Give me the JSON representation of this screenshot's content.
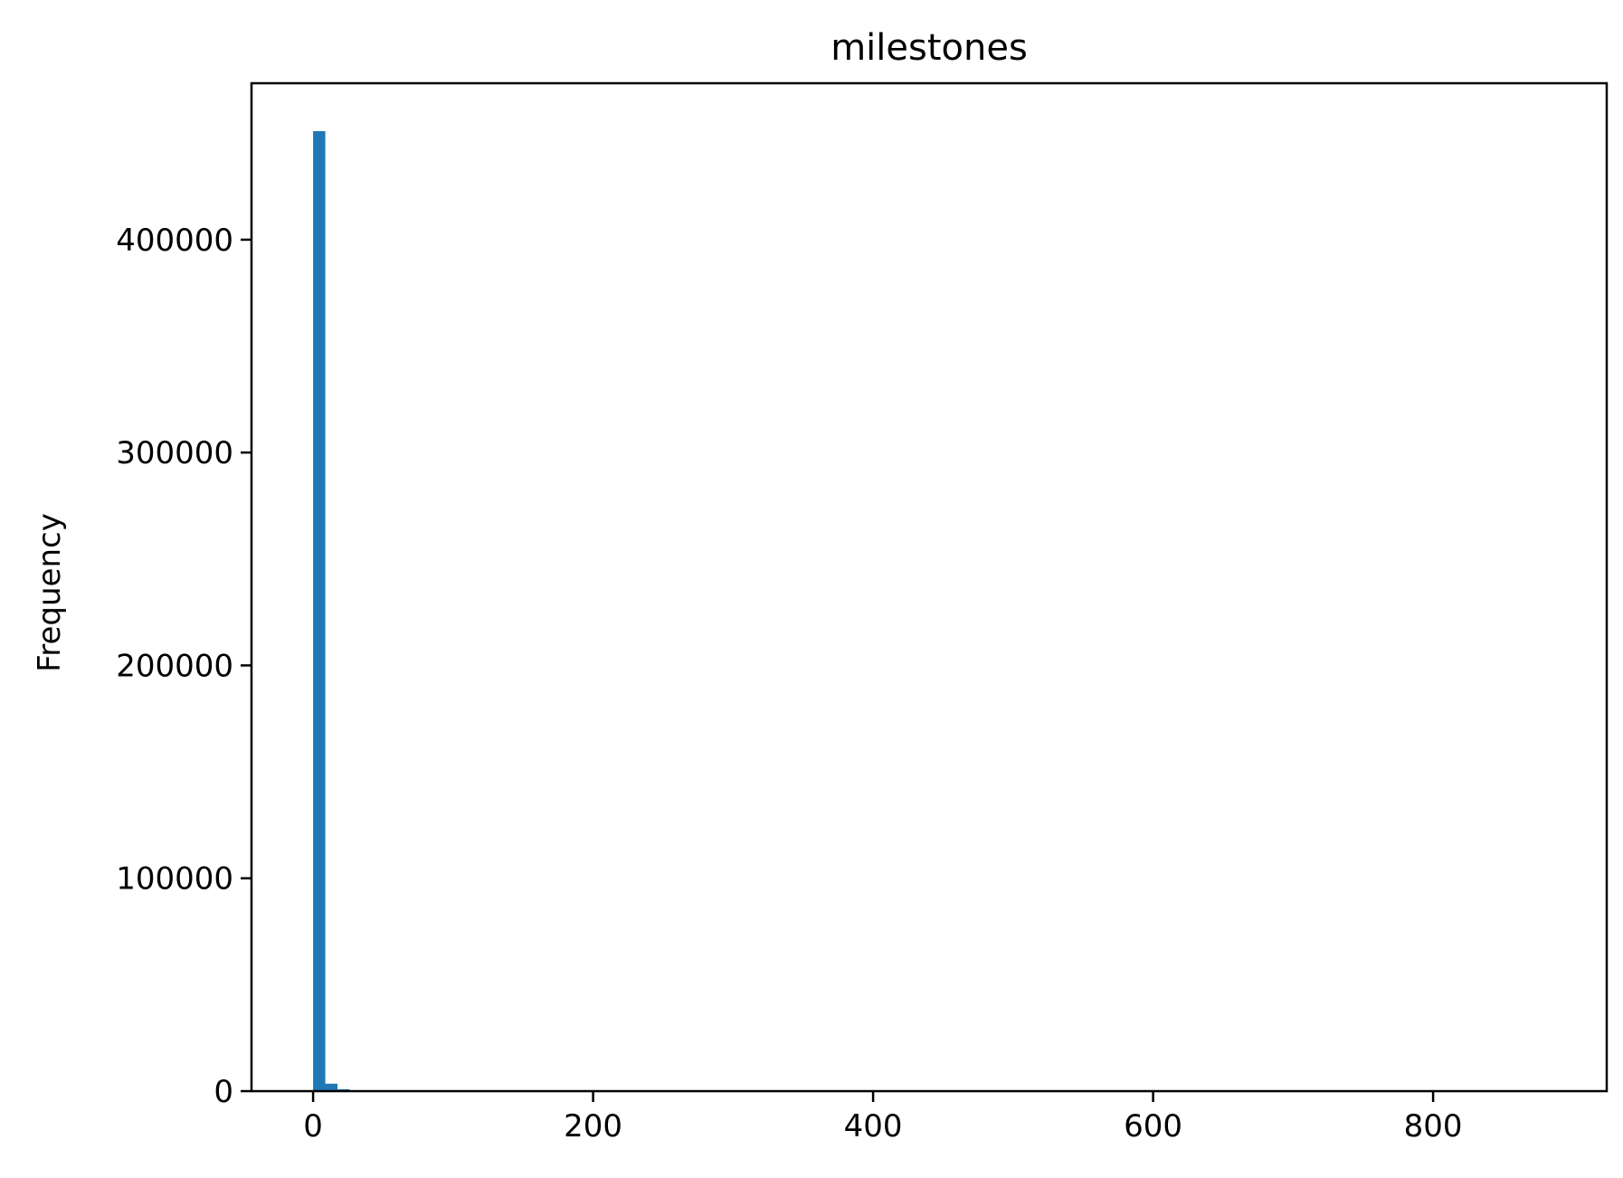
{
  "chart_data": {
    "type": "bar",
    "title": "milestones",
    "xlabel": "",
    "ylabel": "Frequency",
    "xlim": [
      -44,
      924
    ],
    "ylim": [
      0,
      473500
    ],
    "x_ticks": [
      0,
      200,
      400,
      600,
      800
    ],
    "y_ticks": [
      0,
      100000,
      200000,
      300000,
      400000
    ],
    "bin_width": 8.7,
    "bins": [
      {
        "start": 0.0,
        "end": 8.7,
        "count": 451000
      },
      {
        "start": 8.7,
        "end": 17.4,
        "count": 3500
      },
      {
        "start": 17.4,
        "end": 26.1,
        "count": 900
      },
      {
        "start": 26.1,
        "end": 34.8,
        "count": 200
      },
      {
        "start": 34.8,
        "end": 43.5,
        "count": 80
      },
      {
        "start": 43.5,
        "end": 52.2,
        "count": 30
      }
    ],
    "grid": false,
    "bar_color": "#1f77b4"
  }
}
